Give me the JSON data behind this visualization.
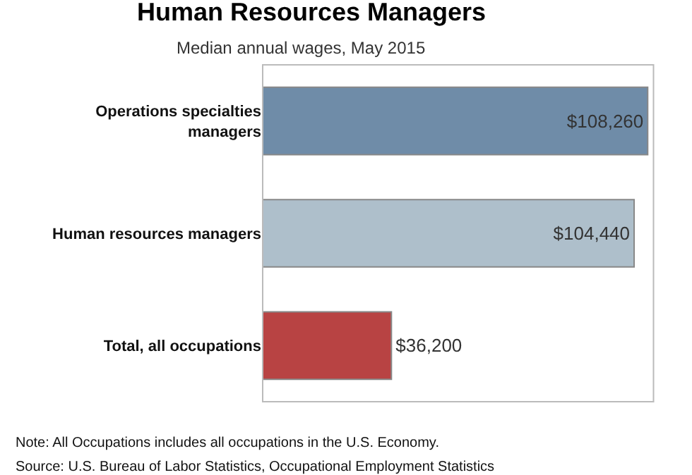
{
  "chart_data": {
    "type": "bar",
    "orientation": "horizontal",
    "title": "Human Resources Managers",
    "subtitle": "Median annual wages, May 2015",
    "categories": [
      "Operations specialties managers",
      "Human resources managers",
      "Total, all occupations"
    ],
    "values": [
      108260,
      104440,
      36200
    ],
    "colors": [
      "#6f8ca8",
      "#aebfcb",
      "#b84343"
    ],
    "value_labels": [
      "$108,260",
      "$104,440",
      "$36,200"
    ],
    "legend": false,
    "annotations": [
      "Note: All Occupations includes all occupations in the U.S. Economy.",
      "Source: U.S. Bureau of Labor Statistics, Occupational Employment Statistics"
    ]
  }
}
